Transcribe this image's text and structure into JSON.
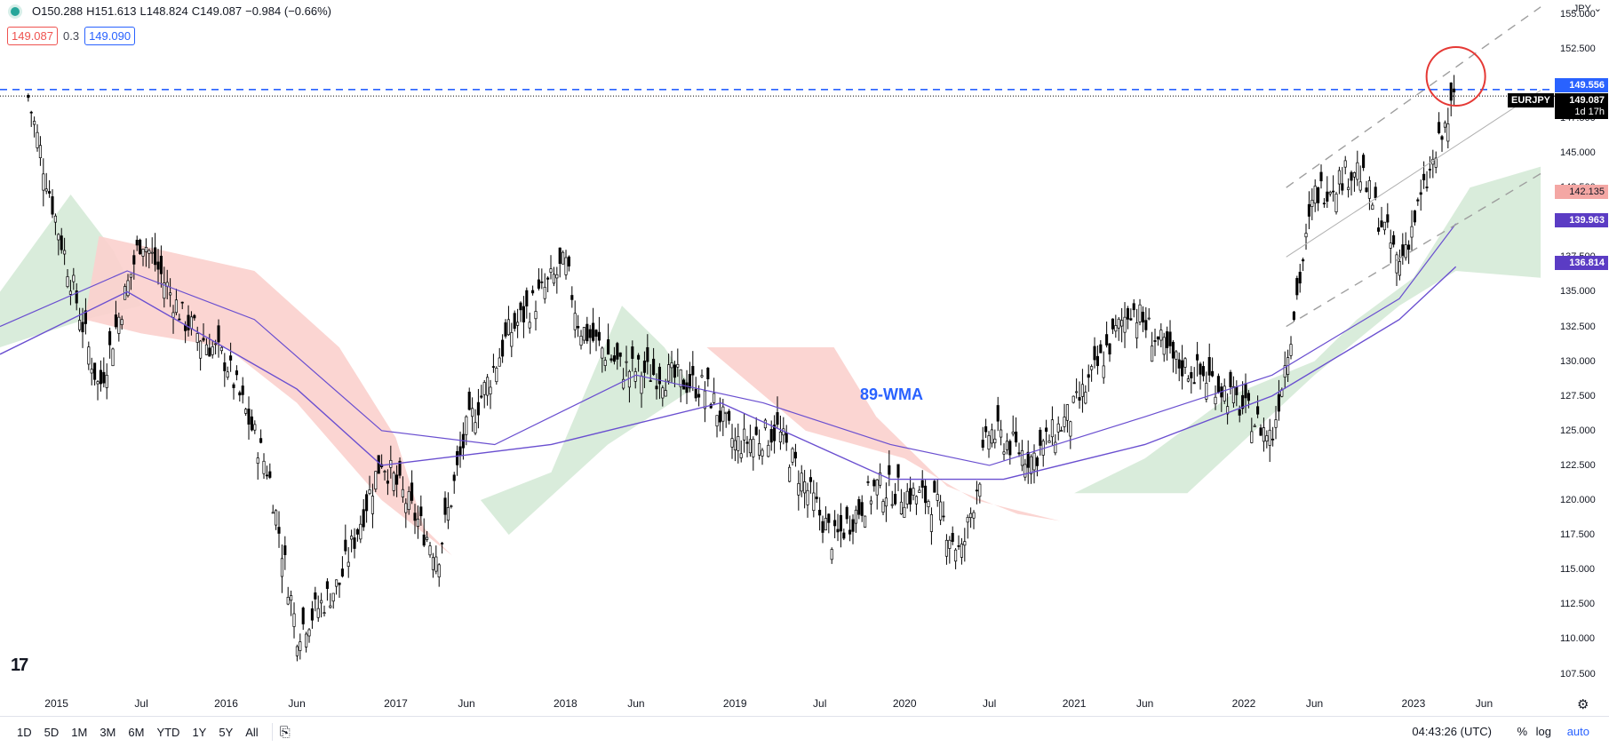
{
  "header": {
    "open": "O150.288",
    "high": "H151.613",
    "low": "L148.824",
    "close": "C149.087",
    "change": "−0.984 (−0.66%)",
    "sell_price": "149.087",
    "spread": "0.3",
    "buy_price": "149.090",
    "currency": "JPY"
  },
  "price_tags": {
    "line_level": "149.556",
    "symbol": "EURJPY",
    "last": "149.087",
    "countdown": "1d 17h",
    "ichimoku_top": "142.135",
    "wma_fast": "139.963",
    "wma_slow": "136.814"
  },
  "annotation": "89-WMA",
  "y_ticks": [
    "155.000",
    "152.500",
    "150.000",
    "147.500",
    "145.000",
    "142.500",
    "140.000",
    "137.500",
    "135.000",
    "132.500",
    "130.000",
    "127.500",
    "125.000",
    "122.500",
    "120.000",
    "117.500",
    "115.000",
    "112.500",
    "110.000",
    "107.500"
  ],
  "x_ticks": [
    "2015",
    "Jul",
    "2016",
    "Jun",
    "2017",
    "Jun",
    "2018",
    "Jun",
    "2019",
    "Jul",
    "2020",
    "Jul",
    "2021",
    "Jun",
    "2022",
    "Jun",
    "2023",
    "Jun"
  ],
  "ranges": [
    "1D",
    "5D",
    "1M",
    "3M",
    "6M",
    "YTD",
    "1Y",
    "5Y",
    "All"
  ],
  "footer": {
    "time": "04:43:26 (UTC)",
    "percent": "%",
    "log": "log",
    "auto": "auto"
  },
  "colors": {
    "up": "#000000",
    "down": "#000000",
    "cloud_bull": "#d5ead7",
    "cloud_bear": "#fbd0cd",
    "wma": "#6a4fd0",
    "level": "#2962ff",
    "circle": "#e53935",
    "channel": "#9e9e9e"
  },
  "chart_data": {
    "type": "candlestick",
    "symbol": "EURJPY",
    "timeframe": "weekly",
    "ylim": [
      106,
      156
    ],
    "horizontal_level": 149.556,
    "series": [
      {
        "name": "EURJPY",
        "x": [
          "2014-11",
          "2015-01",
          "2015-04",
          "2015-07",
          "2015-10",
          "2016-01",
          "2016-04",
          "2016-06",
          "2016-09",
          "2016-12",
          "2017-04",
          "2017-06",
          "2017-09",
          "2018-01",
          "2018-02",
          "2018-05",
          "2018-08",
          "2018-11",
          "2019-01",
          "2019-04",
          "2019-08",
          "2019-11",
          "2020-03",
          "2020-05",
          "2020-07",
          "2020-10",
          "2021-01",
          "2021-05",
          "2021-08",
          "2021-11",
          "2022-03",
          "2022-06",
          "2022-09",
          "2022-12",
          "2023-02",
          "2023-04"
        ],
        "y": [
          149.0,
          140.0,
          128.0,
          139.0,
          133.0,
          130.0,
          122.0,
          110.5,
          114.0,
          123.0,
          116.0,
          125.0,
          132.0,
          137.0,
          132.5,
          129.5,
          129.0,
          128.0,
          124.0,
          125.0,
          117.0,
          121.0,
          120.0,
          116.0,
          125.0,
          123.0,
          126.5,
          134.0,
          130.0,
          128.5,
          124.5,
          142.0,
          144.0,
          137.0,
          143.0,
          149.1
        ]
      },
      {
        "name": "89-WMA",
        "x": [
          "2014-09",
          "2015-06",
          "2016-06",
          "2016-12",
          "2017-12",
          "2018-12",
          "2019-12",
          "2020-08",
          "2021-06",
          "2022-03",
          "2022-12",
          "2023-04"
        ],
        "y": [
          130.5,
          135.0,
          128.0,
          122.5,
          124.0,
          127.0,
          121.5,
          121.5,
          124.0,
          127.5,
          133.0,
          136.8
        ]
      }
    ]
  }
}
